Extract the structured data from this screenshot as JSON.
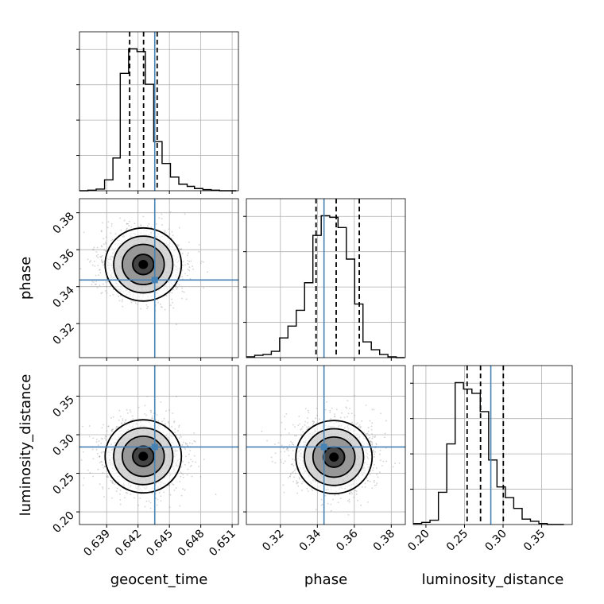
{
  "chart_data": {
    "type": "corner",
    "parameters": [
      "geocent_time",
      "phase",
      "luminosity_distance"
    ],
    "axis_labels": {
      "geocent_time": "geocent_time",
      "phase": "phase",
      "luminosity_distance": "luminosity_distance"
    },
    "ranges": {
      "geocent_time": [
        0.6364,
        0.6516
      ],
      "phase": [
        0.3016,
        0.3876
      ],
      "luminosity_distance": [
        0.1836,
        0.3896
      ]
    },
    "ticks": {
      "geocent_time": [
        "0.639",
        "0.642",
        "0.645",
        "0.648",
        "0.651"
      ],
      "phase": [
        "0.32",
        "0.34",
        "0.36",
        "0.38"
      ],
      "luminosity_distance": [
        "0.20",
        "0.25",
        "0.30",
        "0.35"
      ]
    },
    "truths": {
      "geocent_time": 0.6436,
      "phase": 0.3436,
      "luminosity_distance": 0.2841
    },
    "quantiles": {
      "geocent_time": [
        0.6412,
        0.64253,
        0.64383
      ],
      "phase": [
        0.3393,
        0.3502,
        0.3627
      ],
      "luminosity_distance": [
        0.2534,
        0.2708,
        0.3003
      ]
    },
    "histograms": {
      "geocent_time": {
        "edges": [
          0.6364,
          0.6372,
          0.638,
          0.6388,
          0.6396,
          0.6403,
          0.6411,
          0.6419,
          0.6427,
          0.6435,
          0.6443,
          0.6451,
          0.6459,
          0.6467,
          0.6474,
          0.6482,
          0.649,
          0.6498,
          0.6506,
          0.6514
        ],
        "counts": [
          0,
          1,
          3,
          20,
          60,
          215,
          260,
          255,
          195,
          90,
          50,
          25,
          12,
          8,
          4,
          2,
          1,
          0,
          0
        ]
      },
      "phase": {
        "edges": [
          0.3016,
          0.3061,
          0.3106,
          0.3151,
          0.3196,
          0.3241,
          0.3286,
          0.3331,
          0.3376,
          0.3421,
          0.3467,
          0.3512,
          0.3557,
          0.3602,
          0.3647,
          0.3692,
          0.3737,
          0.3782,
          0.3827,
          0.3872
        ],
        "counts": [
          1,
          3,
          4,
          8,
          25,
          40,
          60,
          95,
          155,
          180,
          178,
          165,
          125,
          68,
          20,
          10,
          4,
          1,
          0
        ]
      },
      "luminosity_distance": {
        "edges": [
          0.1836,
          0.1945,
          0.2053,
          0.2162,
          0.227,
          0.2379,
          0.2487,
          0.2596,
          0.2704,
          0.2813,
          0.2921,
          0.303,
          0.3138,
          0.3247,
          0.3355,
          0.3464,
          0.3572,
          0.3681,
          0.3789
        ],
        "counts": [
          1,
          2,
          4,
          30,
          75,
          132,
          126,
          122,
          105,
          60,
          35,
          25,
          15,
          5,
          3,
          1,
          0,
          0
        ]
      }
    },
    "joint_peak": {
      "geocent_time|phase": {
        "x": 0.6425,
        "y": 0.352
      },
      "geocent_time|luminosity_distance": {
        "x": 0.6425,
        "y": 0.272
      },
      "phase|luminosity_distance": {
        "x": 0.349,
        "y": 0.271
      }
    },
    "colors": {
      "truth": "#4682b4",
      "line": "#000000",
      "grid": "#b0b0b0",
      "scatter": "#808080"
    },
    "grid": true
  }
}
